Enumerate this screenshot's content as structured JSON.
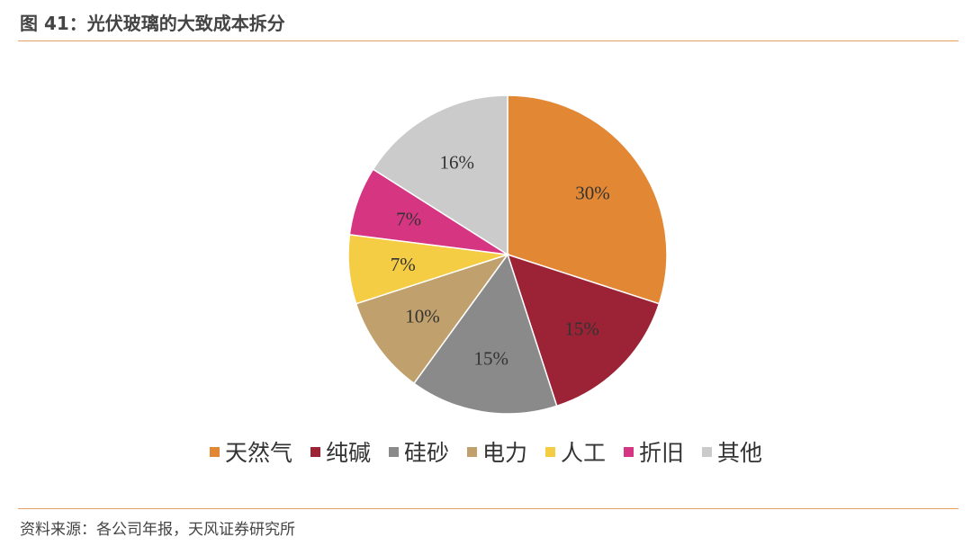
{
  "figure_title": "图 41：光伏玻璃的大致成本拆分",
  "source": "资料来源：各公司年报，天风证券研究所",
  "chart_data": {
    "type": "pie",
    "legend_position": "bottom",
    "slices": [
      {
        "name": "天然气",
        "value": 30,
        "label": "30%",
        "color": "#e28835",
        "label_color": "#333333"
      },
      {
        "name": "纯碱",
        "value": 15,
        "label": "15%",
        "color": "#9b2335",
        "label_color": "#333333"
      },
      {
        "name": "硅砂",
        "value": 15,
        "label": "15%",
        "color": "#8a8a8a",
        "label_color": "#333333"
      },
      {
        "name": "电力",
        "value": 10,
        "label": "10%",
        "color": "#c0a06c",
        "label_color": "#333333"
      },
      {
        "name": "人工",
        "value": 7,
        "label": "7%",
        "color": "#f5cd45",
        "label_color": "#333333"
      },
      {
        "name": "折旧",
        "value": 7,
        "label": "7%",
        "color": "#d53581",
        "label_color": "#333333"
      },
      {
        "name": "其他",
        "value": 16,
        "label": "16%",
        "color": "#cbcbcb",
        "label_color": "#333333"
      }
    ]
  }
}
